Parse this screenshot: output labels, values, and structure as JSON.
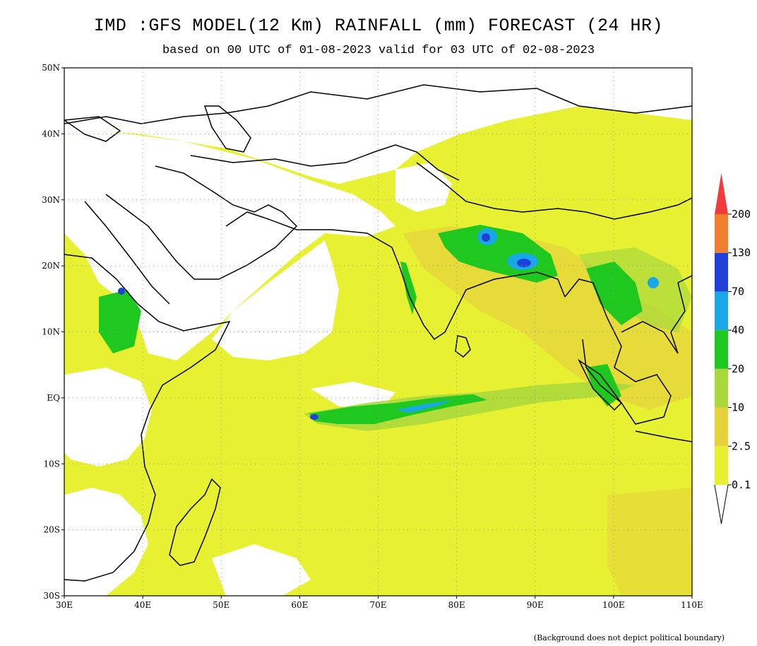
{
  "header": {
    "title": "IMD :GFS MODEL(12 Km) RAINFALL (mm) FORECAST (24 HR)",
    "subtitle": "based on 00 UTC of 01-08-2023 valid for 03 UTC of 02-08-2023"
  },
  "map": {
    "extent": {
      "lon_min": 30,
      "lon_max": 110,
      "lat_min": -30,
      "lat_max": 50
    },
    "lat_ticks": [
      {
        "lat": 50,
        "label": "50N"
      },
      {
        "lat": 40,
        "label": "40N"
      },
      {
        "lat": 30,
        "label": "30N"
      },
      {
        "lat": 20,
        "label": "20N"
      },
      {
        "lat": 10,
        "label": "10N"
      },
      {
        "lat": 0,
        "label": "EQ"
      },
      {
        "lat": -10,
        "label": "10S"
      },
      {
        "lat": -20,
        "label": "20S"
      },
      {
        "lat": -30,
        "label": "30S"
      }
    ],
    "lon_ticks": [
      {
        "lon": 30,
        "label": "30E"
      },
      {
        "lon": 40,
        "label": "40E"
      },
      {
        "lon": 50,
        "label": "50E"
      },
      {
        "lon": 60,
        "label": "60E"
      },
      {
        "lon": 70,
        "label": "70E"
      },
      {
        "lon": 80,
        "label": "80E"
      },
      {
        "lon": 90,
        "label": "90E"
      },
      {
        "lon": 100,
        "label": "100E"
      },
      {
        "lon": 110,
        "label": "110E"
      }
    ],
    "grid": "dotted",
    "projection": "cylindrical lat-lon"
  },
  "colorbar": {
    "orientation": "vertical",
    "placement": "right",
    "levels": [
      "0.1",
      "2.5",
      "10",
      "20",
      "40",
      "70",
      "130",
      "200"
    ],
    "colors": [
      "#e8f032",
      "#e6d23a",
      "#a8d83c",
      "#1ec81e",
      "#18a8e8",
      "#2040d8",
      "#f08030",
      "#f03c3c"
    ],
    "extends": "both"
  },
  "footnote": "(Background does not depict political boundary)"
}
